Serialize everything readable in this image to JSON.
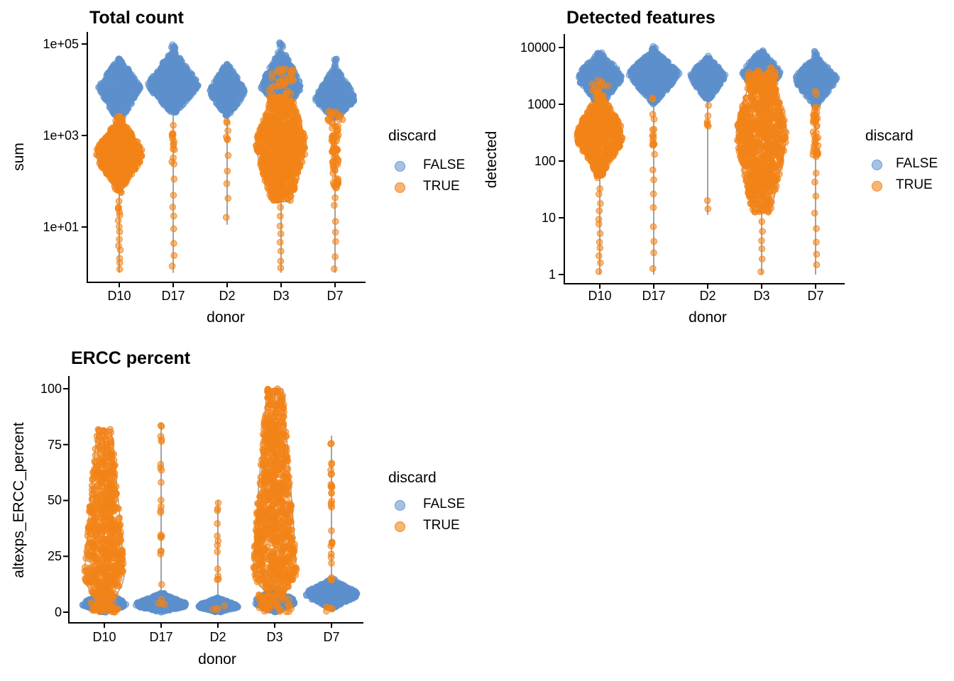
{
  "figure": {
    "background": "#ffffff"
  },
  "series_colors": {
    "FALSE": {
      "color": "#5C90CC",
      "opacity": 0.5
    },
    "TRUE": {
      "color": "#F28418",
      "opacity": 0.55
    }
  },
  "outline_color": "#8a8a8a",
  "axis_color": "#000000",
  "legend": {
    "title": "discard",
    "items": [
      {
        "label": "FALSE"
      },
      {
        "label": "TRUE"
      }
    ]
  },
  "chart_data": [
    {
      "type": "scatter",
      "title": "Total count",
      "xlabel": "donor",
      "ylabel": "sum",
      "y_scale": "log10",
      "y_domain": [
        1,
        100000
      ],
      "y_ticks": [
        "1e+05",
        "1e+03",
        "1e+01"
      ],
      "y_tick_values": [
        5,
        3,
        1
      ],
      "categories": [
        "D10",
        "D17",
        "D2",
        "D3",
        "D7"
      ],
      "legend_position": "right",
      "grid": false,
      "clusters": [
        {
          "cat": 0,
          "group": "FALSE",
          "shape": "diamond",
          "range": [
            3.3,
            4.7
          ],
          "mode": 4.05,
          "width": 0.82,
          "n": 480
        },
        {
          "cat": 0,
          "group": "TRUE",
          "shape": "blob",
          "range": [
            1.75,
            3.42
          ],
          "mode": 2.6,
          "width": 0.9,
          "n": 600
        },
        {
          "cat": 0,
          "group": "TRUE",
          "shape": "strand",
          "range": [
            0.85,
            1.6
          ],
          "width": 0.05,
          "n": 9
        },
        {
          "cat": 0,
          "group": "TRUE",
          "shape": "tail",
          "range": [
            0,
            0.8
          ],
          "width": 0.04,
          "n": 6
        },
        {
          "cat": 1,
          "group": "FALSE",
          "shape": "diamond",
          "range": [
            3.45,
            4.87
          ],
          "mode": 4.1,
          "width": 1.0,
          "n": 700
        },
        {
          "cat": 1,
          "group": "FALSE",
          "shape": "strand",
          "range": [
            4.88,
            5.0
          ],
          "width": 0.08,
          "n": 8
        },
        {
          "cat": 1,
          "group": "TRUE",
          "shape": "strand",
          "range": [
            2.25,
            3.42
          ],
          "width": 0.05,
          "n": 14
        },
        {
          "cat": 1,
          "group": "TRUE",
          "shape": "tail",
          "range": [
            0,
            2.15
          ],
          "width": 0.04,
          "n": 8
        },
        {
          "cat": 2,
          "group": "FALSE",
          "shape": "diamond",
          "range": [
            3.4,
            4.6
          ],
          "mode": 3.95,
          "width": 0.7,
          "n": 380
        },
        {
          "cat": 2,
          "group": "TRUE",
          "shape": "strand",
          "range": [
            2.9,
            3.35
          ],
          "width": 0.04,
          "n": 6
        },
        {
          "cat": 2,
          "group": "TRUE",
          "shape": "tail",
          "range": [
            1.05,
            2.8
          ],
          "width": 0.04,
          "n": 5
        },
        {
          "cat": 3,
          "group": "FALSE",
          "shape": "diamond",
          "range": [
            3.5,
            4.93
          ],
          "mode": 4.05,
          "width": 0.8,
          "n": 420
        },
        {
          "cat": 3,
          "group": "FALSE",
          "shape": "strand",
          "range": [
            4.93,
            5.05
          ],
          "width": 0.06,
          "n": 6
        },
        {
          "cat": 3,
          "group": "TRUE",
          "shape": "column",
          "range": [
            1.55,
            3.85
          ],
          "mode": 2.8,
          "width": 1.0,
          "n": 850
        },
        {
          "cat": 3,
          "group": "TRUE",
          "shape": "scatter",
          "range": [
            3.5,
            4.45
          ],
          "width": 0.5,
          "n": 45
        },
        {
          "cat": 3,
          "group": "TRUE",
          "shape": "tail",
          "range": [
            0,
            1.5
          ],
          "width": 0.04,
          "n": 8
        },
        {
          "cat": 4,
          "group": "FALSE",
          "shape": "diamond",
          "range": [
            3.35,
            4.5
          ],
          "mode": 3.8,
          "width": 0.8,
          "n": 450
        },
        {
          "cat": 4,
          "group": "FALSE",
          "shape": "strand",
          "range": [
            4.52,
            4.7
          ],
          "width": 0.06,
          "n": 6
        },
        {
          "cat": 4,
          "group": "TRUE",
          "shape": "strand",
          "range": [
            1.85,
            3.3
          ],
          "width": 0.13,
          "n": 70
        },
        {
          "cat": 4,
          "group": "TRUE",
          "shape": "scatter",
          "range": [
            3.3,
            3.55
          ],
          "width": 0.3,
          "n": 14
        },
        {
          "cat": 4,
          "group": "TRUE",
          "shape": "tail",
          "range": [
            0,
            1.8
          ],
          "width": 0.04,
          "n": 7
        }
      ],
      "stems": [
        {
          "cat": 0,
          "range": [
            0,
            4.7
          ]
        },
        {
          "cat": 1,
          "range": [
            0,
            5.0
          ]
        },
        {
          "cat": 2,
          "range": [
            1.05,
            4.6
          ]
        },
        {
          "cat": 3,
          "range": [
            0,
            5.05
          ]
        },
        {
          "cat": 4,
          "range": [
            0,
            4.7
          ]
        }
      ]
    },
    {
      "type": "scatter",
      "title": "Detected features",
      "xlabel": "donor",
      "ylabel": "detected",
      "y_scale": "log10",
      "y_domain": [
        1,
        10000
      ],
      "y_ticks": [
        "10000",
        "1000",
        "100",
        "10",
        "1"
      ],
      "y_tick_values": [
        4,
        3,
        2,
        1,
        0
      ],
      "categories": [
        "D10",
        "D17",
        "D2",
        "D3",
        "D7"
      ],
      "legend_position": "right",
      "grid": false,
      "clusters": [
        {
          "cat": 0,
          "group": "FALSE",
          "shape": "blob",
          "range": [
            2.95,
            3.92
          ],
          "mode": 3.5,
          "width": 0.85,
          "n": 500
        },
        {
          "cat": 0,
          "group": "TRUE",
          "shape": "blob",
          "range": [
            1.7,
            3.25
          ],
          "mode": 2.45,
          "width": 0.9,
          "n": 600
        },
        {
          "cat": 0,
          "group": "TRUE",
          "shape": "scatter",
          "range": [
            3.2,
            3.45
          ],
          "width": 0.35,
          "n": 10
        },
        {
          "cat": 0,
          "group": "TRUE",
          "shape": "tail",
          "range": [
            0,
            1.6
          ],
          "width": 0.04,
          "n": 12
        },
        {
          "cat": 1,
          "group": "FALSE",
          "shape": "diamond",
          "range": [
            3.0,
            3.95
          ],
          "mode": 3.55,
          "width": 1.0,
          "n": 700
        },
        {
          "cat": 1,
          "group": "FALSE",
          "shape": "strand",
          "range": [
            3.95,
            4.02
          ],
          "width": 0.07,
          "n": 6
        },
        {
          "cat": 1,
          "group": "TRUE",
          "shape": "strand",
          "range": [
            2.1,
            3.12
          ],
          "width": 0.05,
          "n": 15
        },
        {
          "cat": 1,
          "group": "TRUE",
          "shape": "tail",
          "range": [
            0,
            2.0
          ],
          "width": 0.04,
          "n": 8
        },
        {
          "cat": 2,
          "group": "FALSE",
          "shape": "diamond",
          "range": [
            3.05,
            3.85
          ],
          "mode": 3.5,
          "width": 0.7,
          "n": 380
        },
        {
          "cat": 2,
          "group": "TRUE",
          "shape": "strand",
          "range": [
            2.6,
            3.0
          ],
          "width": 0.04,
          "n": 6
        },
        {
          "cat": 2,
          "group": "TRUE",
          "shape": "tail",
          "range": [
            1.05,
            1.45
          ],
          "width": 0.04,
          "n": 2
        },
        {
          "cat": 3,
          "group": "FALSE",
          "shape": "diamond",
          "range": [
            3.2,
            3.97
          ],
          "mode": 3.55,
          "width": 0.78,
          "n": 400
        },
        {
          "cat": 3,
          "group": "TRUE",
          "shape": "column",
          "range": [
            1.1,
            3.55
          ],
          "mode": 2.5,
          "width": 1.0,
          "n": 850
        },
        {
          "cat": 3,
          "group": "TRUE",
          "shape": "scatter",
          "range": [
            3.2,
            3.65
          ],
          "width": 0.55,
          "n": 70
        },
        {
          "cat": 3,
          "group": "TRUE",
          "shape": "tail",
          "range": [
            0,
            1.0
          ],
          "width": 0.04,
          "n": 6
        },
        {
          "cat": 4,
          "group": "FALSE",
          "shape": "diamond",
          "range": [
            2.95,
            3.85
          ],
          "mode": 3.45,
          "width": 0.85,
          "n": 480
        },
        {
          "cat": 4,
          "group": "FALSE",
          "shape": "strand",
          "range": [
            3.86,
            3.95
          ],
          "width": 0.06,
          "n": 5
        },
        {
          "cat": 4,
          "group": "TRUE",
          "shape": "scatter",
          "range": [
            3.15,
            3.25
          ],
          "width": 0.04,
          "n": 2
        },
        {
          "cat": 4,
          "group": "TRUE",
          "shape": "strand",
          "range": [
            2.05,
            2.95
          ],
          "width": 0.1,
          "n": 40
        },
        {
          "cat": 4,
          "group": "TRUE",
          "shape": "tail",
          "range": [
            0,
            1.95
          ],
          "width": 0.04,
          "n": 8
        }
      ],
      "stems": [
        {
          "cat": 0,
          "range": [
            0,
            3.92
          ]
        },
        {
          "cat": 1,
          "range": [
            0,
            4.02
          ]
        },
        {
          "cat": 2,
          "range": [
            1.05,
            3.85
          ]
        },
        {
          "cat": 3,
          "range": [
            0,
            3.97
          ]
        },
        {
          "cat": 4,
          "range": [
            0,
            3.95
          ]
        }
      ]
    },
    {
      "type": "scatter",
      "title": "ERCC percent",
      "xlabel": "donor",
      "ylabel": "altexps_ERCC_percent",
      "y_scale": "linear",
      "y_domain": [
        0,
        100
      ],
      "y_ticks": [
        "100",
        "75",
        "50",
        "25",
        "0"
      ],
      "y_tick_values": [
        100,
        75,
        50,
        25,
        0
      ],
      "categories": [
        "D10",
        "D17",
        "D2",
        "D3",
        "D7"
      ],
      "legend_position": "right",
      "grid": false,
      "clusters": [
        {
          "cat": 0,
          "group": "TRUE",
          "shape": "column",
          "range": [
            4,
            82
          ],
          "mode": 15,
          "width": 0.78,
          "n": 650
        },
        {
          "cat": 0,
          "group": "FALSE",
          "shape": "blob",
          "range": [
            0,
            9.5
          ],
          "mode": 3.2,
          "width": 0.85,
          "n": 450
        },
        {
          "cat": 0,
          "group": "TRUE",
          "shape": "scatter",
          "range": [
            0,
            5
          ],
          "width": 0.55,
          "n": 40
        },
        {
          "cat": 1,
          "group": "FALSE",
          "shape": "blob",
          "range": [
            0,
            8.5
          ],
          "mode": 3.2,
          "width": 1.0,
          "n": 650
        },
        {
          "cat": 1,
          "group": "TRUE",
          "shape": "strand",
          "range": [
            5,
            85
          ],
          "width": 0.025,
          "n": 22
        },
        {
          "cat": 1,
          "group": "TRUE",
          "shape": "scatter",
          "range": [
            1.5,
            4
          ],
          "width": 0.3,
          "n": 3
        },
        {
          "cat": 2,
          "group": "FALSE",
          "shape": "blob",
          "range": [
            0,
            6.5
          ],
          "mode": 2.5,
          "width": 0.8,
          "n": 420
        },
        {
          "cat": 2,
          "group": "TRUE",
          "shape": "strand",
          "range": [
            8,
            50
          ],
          "width": 0.025,
          "n": 12
        },
        {
          "cat": 2,
          "group": "TRUE",
          "shape": "scatter",
          "range": [
            0.5,
            3.5
          ],
          "width": 0.3,
          "n": 4
        },
        {
          "cat": 3,
          "group": "TRUE",
          "shape": "column",
          "range": [
            8,
            100
          ],
          "mode": 17,
          "width": 0.85,
          "n": 900
        },
        {
          "cat": 3,
          "group": "FALSE",
          "shape": "blob",
          "range": [
            0,
            10.5
          ],
          "mode": 4.5,
          "width": 0.8,
          "n": 400
        },
        {
          "cat": 3,
          "group": "TRUE",
          "shape": "scatter",
          "range": [
            0,
            8
          ],
          "width": 0.65,
          "n": 60
        },
        {
          "cat": 4,
          "group": "FALSE",
          "shape": "blob",
          "range": [
            1.5,
            15
          ],
          "mode": 8,
          "width": 1.0,
          "n": 600
        },
        {
          "cat": 4,
          "group": "TRUE",
          "shape": "strand",
          "range": [
            12,
            79
          ],
          "width": 0.03,
          "n": 28
        },
        {
          "cat": 4,
          "group": "TRUE",
          "shape": "scatter",
          "range": [
            0,
            2.5
          ],
          "width": 0.2,
          "n": 5
        }
      ],
      "stems": [
        {
          "cat": 0,
          "range": [
            0,
            82
          ]
        },
        {
          "cat": 1,
          "range": [
            0,
            85
          ]
        },
        {
          "cat": 2,
          "range": [
            0,
            50
          ]
        },
        {
          "cat": 3,
          "range": [
            0,
            100
          ]
        },
        {
          "cat": 4,
          "range": [
            0,
            79
          ]
        }
      ]
    }
  ]
}
